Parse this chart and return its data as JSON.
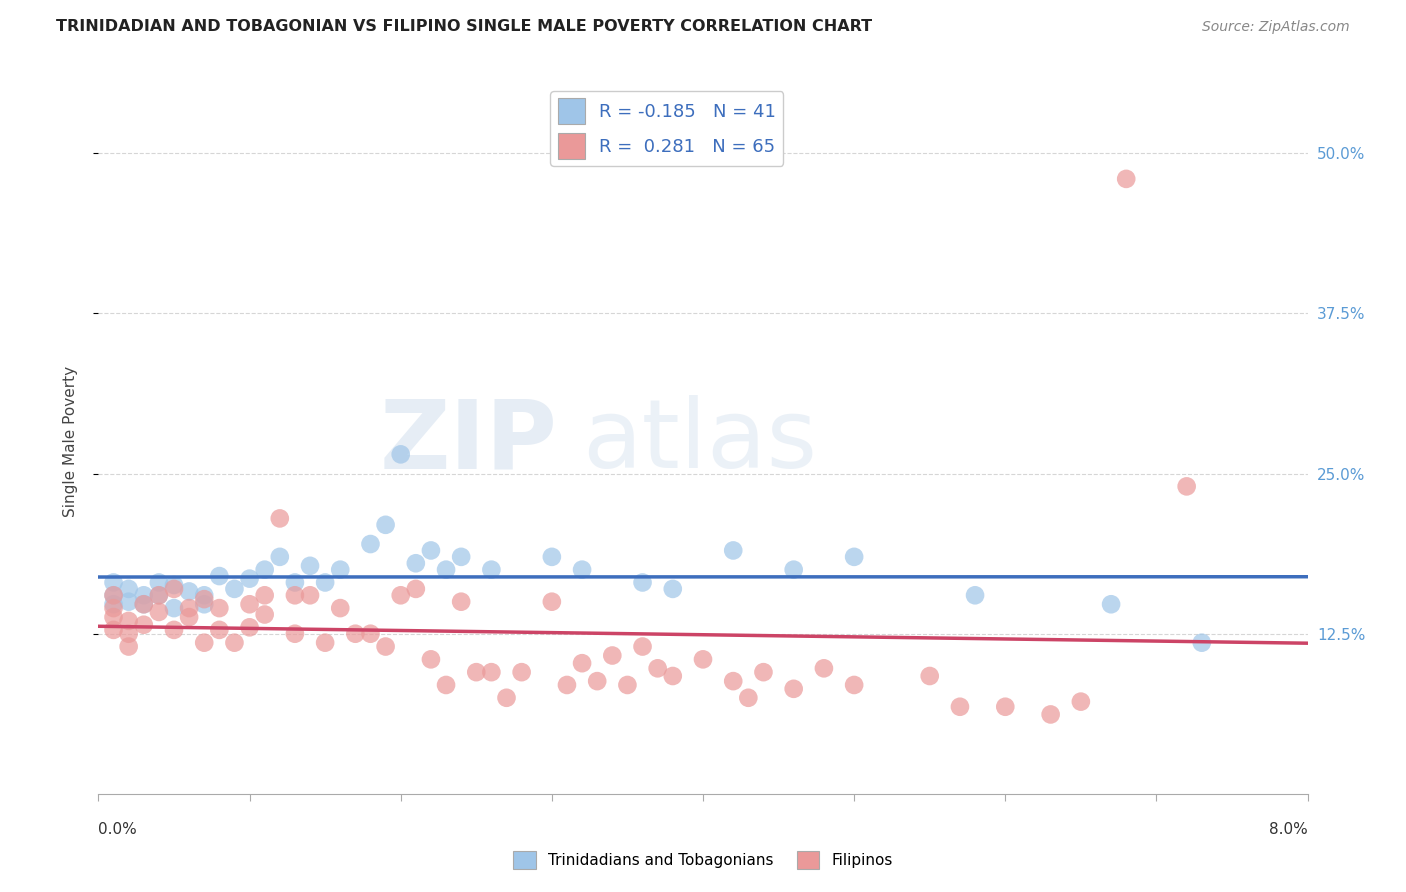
{
  "title": "TRINIDADIAN AND TOBAGONIAN VS FILIPINO SINGLE MALE POVERTY CORRELATION CHART",
  "source": "Source: ZipAtlas.com",
  "ylabel": "Single Male Poverty",
  "right_yticks": [
    "50.0%",
    "37.5%",
    "25.0%",
    "12.5%"
  ],
  "right_ytick_vals": [
    0.5,
    0.375,
    0.25,
    0.125
  ],
  "legend_blue_r": "-0.185",
  "legend_blue_n": "41",
  "legend_pink_r": "0.281",
  "legend_pink_n": "65",
  "blue_color": "#9fc5e8",
  "pink_color": "#ea9999",
  "blue_line_color": "#3d6ebd",
  "pink_line_color": "#cc4466",
  "xlim": [
    0.0,
    0.08
  ],
  "ylim": [
    0.0,
    0.55
  ],
  "background_color": "#ffffff",
  "grid_color": "#cccccc",
  "blue_points_x": [
    0.001,
    0.001,
    0.001,
    0.002,
    0.002,
    0.003,
    0.003,
    0.004,
    0.004,
    0.005,
    0.005,
    0.006,
    0.007,
    0.007,
    0.008,
    0.009,
    0.01,
    0.011,
    0.012,
    0.013,
    0.014,
    0.015,
    0.016,
    0.018,
    0.019,
    0.02,
    0.021,
    0.022,
    0.023,
    0.024,
    0.026,
    0.03,
    0.032,
    0.036,
    0.038,
    0.042,
    0.046,
    0.05,
    0.058,
    0.067,
    0.073
  ],
  "blue_points_y": [
    0.165,
    0.155,
    0.148,
    0.16,
    0.15,
    0.155,
    0.148,
    0.165,
    0.155,
    0.163,
    0.145,
    0.158,
    0.155,
    0.148,
    0.17,
    0.16,
    0.168,
    0.175,
    0.185,
    0.165,
    0.178,
    0.165,
    0.175,
    0.195,
    0.21,
    0.265,
    0.18,
    0.19,
    0.175,
    0.185,
    0.175,
    0.185,
    0.175,
    0.165,
    0.16,
    0.19,
    0.175,
    0.185,
    0.155,
    0.148,
    0.118
  ],
  "pink_points_x": [
    0.001,
    0.001,
    0.001,
    0.001,
    0.002,
    0.002,
    0.002,
    0.003,
    0.003,
    0.004,
    0.004,
    0.005,
    0.005,
    0.006,
    0.006,
    0.007,
    0.007,
    0.008,
    0.008,
    0.009,
    0.01,
    0.01,
    0.011,
    0.011,
    0.012,
    0.013,
    0.013,
    0.014,
    0.015,
    0.016,
    0.017,
    0.018,
    0.019,
    0.02,
    0.021,
    0.022,
    0.023,
    0.024,
    0.025,
    0.026,
    0.027,
    0.028,
    0.03,
    0.031,
    0.032,
    0.033,
    0.034,
    0.035,
    0.036,
    0.037,
    0.038,
    0.04,
    0.042,
    0.043,
    0.044,
    0.046,
    0.048,
    0.05,
    0.055,
    0.057,
    0.06,
    0.063,
    0.065,
    0.068,
    0.072
  ],
  "pink_points_y": [
    0.155,
    0.145,
    0.138,
    0.128,
    0.135,
    0.125,
    0.115,
    0.148,
    0.132,
    0.155,
    0.142,
    0.16,
    0.128,
    0.145,
    0.138,
    0.152,
    0.118,
    0.145,
    0.128,
    0.118,
    0.148,
    0.13,
    0.155,
    0.14,
    0.215,
    0.155,
    0.125,
    0.155,
    0.118,
    0.145,
    0.125,
    0.125,
    0.115,
    0.155,
    0.16,
    0.105,
    0.085,
    0.15,
    0.095,
    0.095,
    0.075,
    0.095,
    0.15,
    0.085,
    0.102,
    0.088,
    0.108,
    0.085,
    0.115,
    0.098,
    0.092,
    0.105,
    0.088,
    0.075,
    0.095,
    0.082,
    0.098,
    0.085,
    0.092,
    0.068,
    0.068,
    0.062,
    0.072,
    0.48,
    0.24
  ]
}
